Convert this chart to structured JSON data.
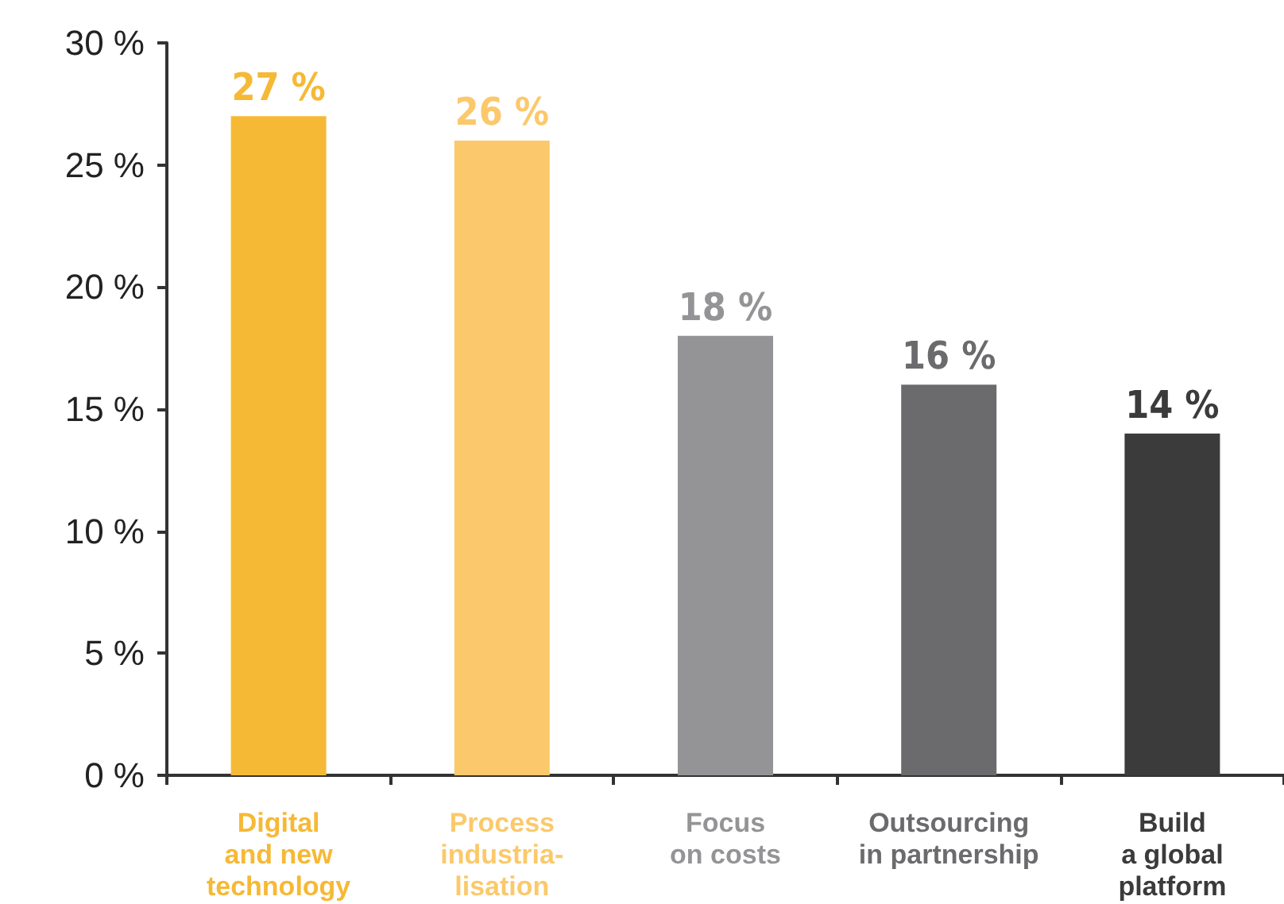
{
  "chart_data": {
    "type": "bar",
    "categories": [
      "Digital\nand new\ntechnology",
      "Process\nindustria-\nlisation",
      "Focus\non costs",
      "Outsourcing\nin partnership",
      "Build\na global\nplatform"
    ],
    "values": [
      27,
      26,
      18,
      16,
      14
    ],
    "colors": [
      "#f6b935",
      "#fbc96b",
      "#949496",
      "#6b6b6e",
      "#3b3b3b"
    ],
    "value_labels": [
      "27 %",
      "26 %",
      "18 %",
      "16 %",
      "14 %"
    ],
    "ylim": [
      0,
      30
    ],
    "yticks": [
      {
        "value": 0,
        "label": "0 %"
      },
      {
        "value": 5,
        "label": "5 %"
      },
      {
        "value": 10,
        "label": "10 %"
      },
      {
        "value": 15,
        "label": "15 %"
      },
      {
        "value": 20,
        "label": "20 %"
      },
      {
        "value": 25,
        "label": "25 %"
      },
      {
        "value": 30,
        "label": "30 %"
      }
    ],
    "grid": false
  }
}
